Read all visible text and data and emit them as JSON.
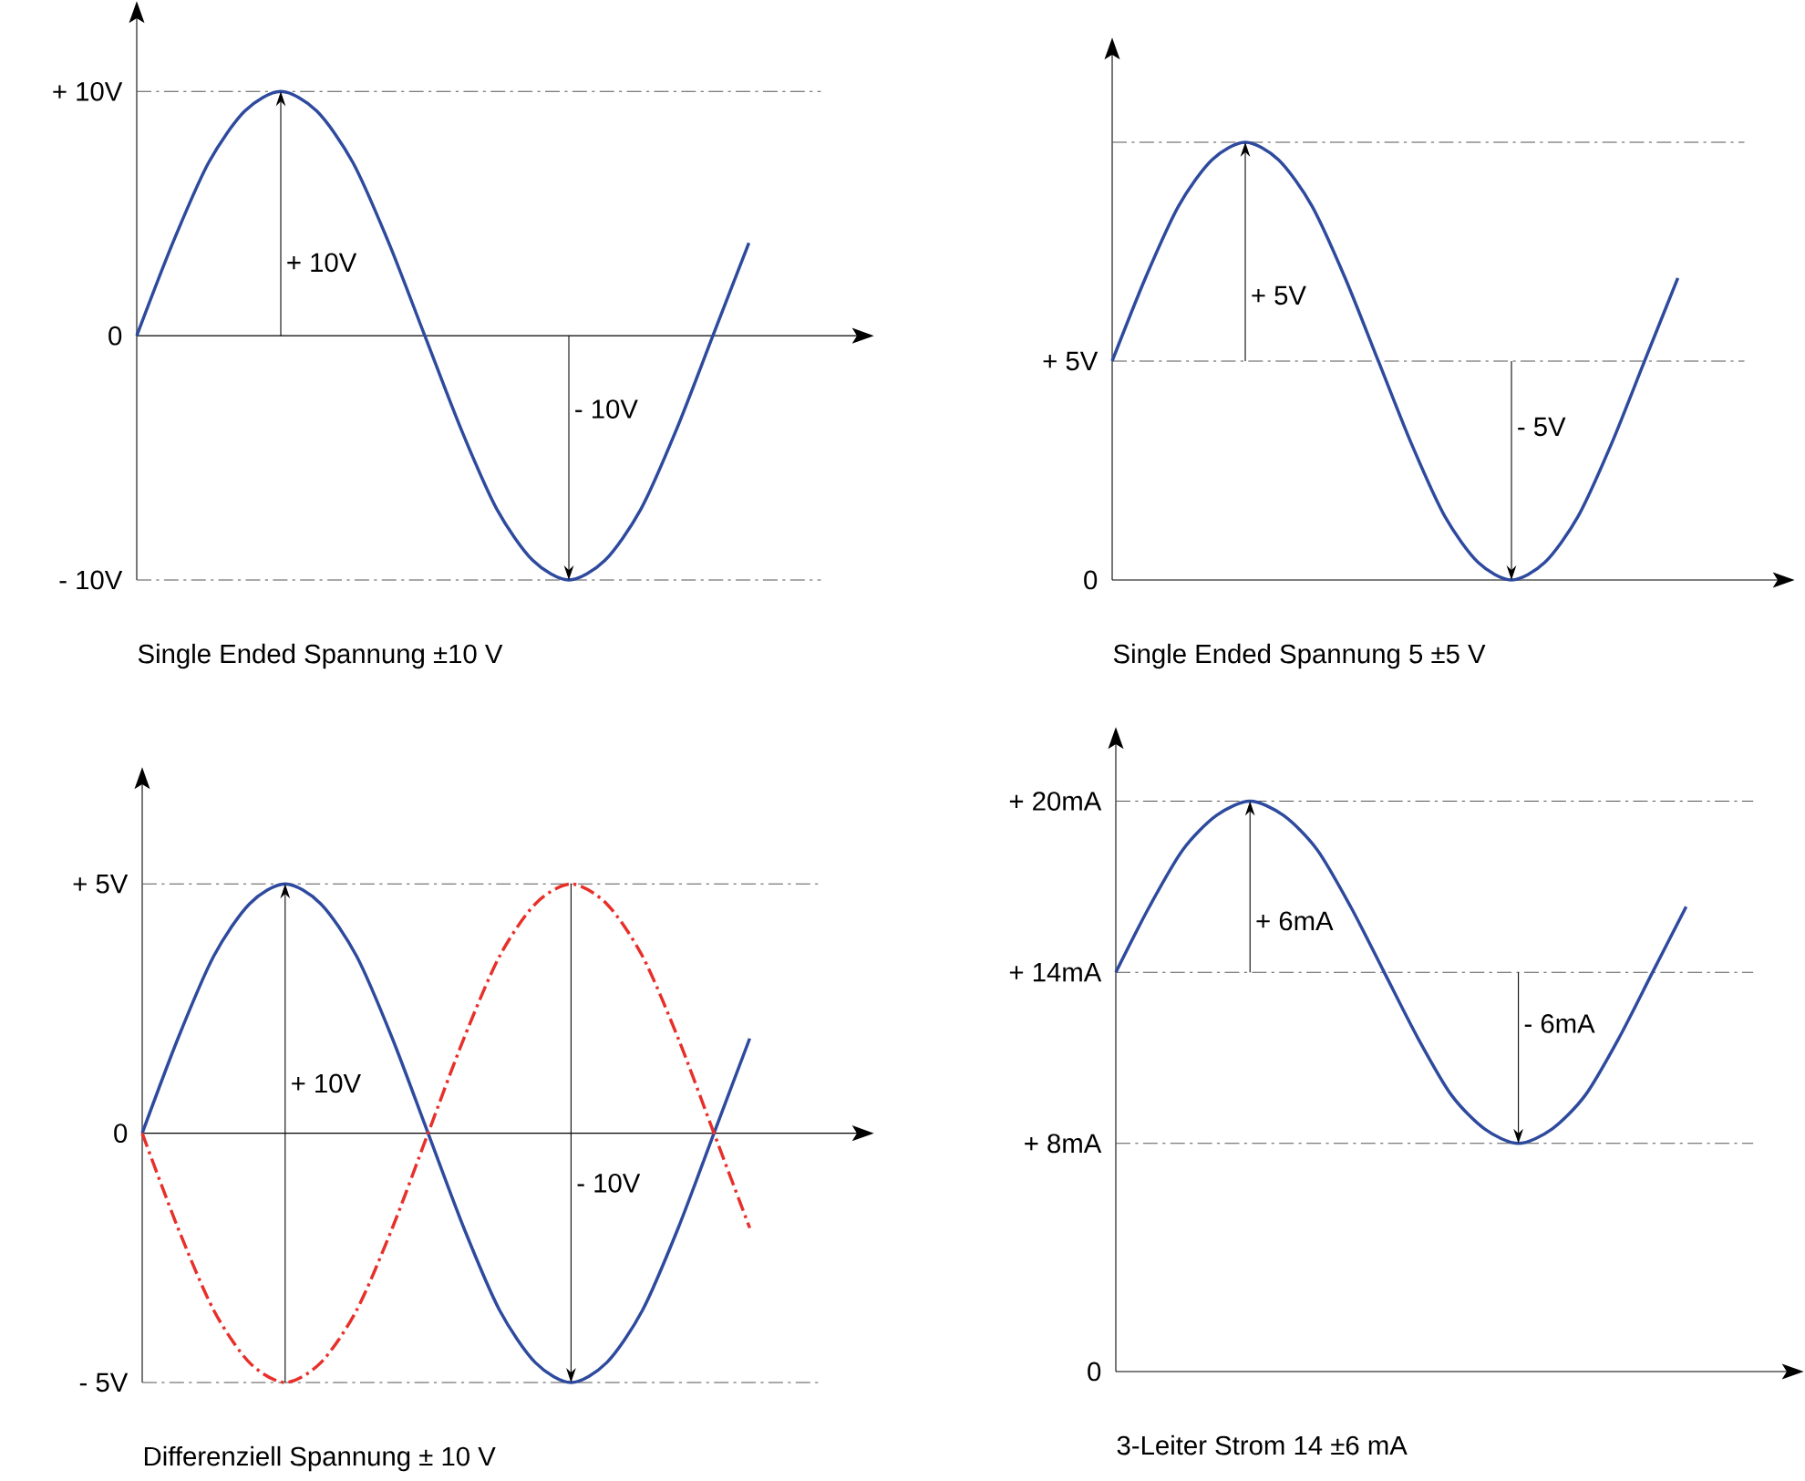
{
  "chart_data": [
    {
      "type": "line",
      "title": "Single Ended Spannung ±10 V",
      "categories": [
        null,
        null,
        null,
        null,
        null,
        null,
        null,
        null,
        null,
        null,
        null,
        null,
        null,
        null,
        null,
        null,
        null,
        null
      ],
      "series": [
        {
          "color": "#2e4a9e",
          "values": [
            0,
            3.8,
            7.1,
            9.2,
            10,
            9.2,
            7.1,
            3.8,
            0,
            -3.8,
            -7.1,
            -9.2,
            -10,
            -9.2,
            -7.1,
            -3.8,
            0,
            3.8
          ]
        }
      ],
      "ylim": [
        -10,
        13
      ],
      "yticks": [
        {
          "value": -10,
          "label": "- 10V"
        },
        0,
        {
          "value": 10,
          "label": "+ 10V"
        }
      ],
      "tick_labels": "y",
      "ref_lines": [
        {
          "axis": "y",
          "value": 10,
          "color": "#555555"
        },
        {
          "axis": "y",
          "value": -10,
          "color": "#555555"
        }
      ],
      "annotations": [
        "+ 10V",
        "- 10V"
      ]
    },
    {
      "type": "line",
      "title": "Single Ended Spannung 5 ±5 V",
      "categories": [
        null,
        null,
        null,
        null,
        null,
        null,
        null,
        null,
        null,
        null,
        null,
        null,
        null,
        null,
        null,
        null,
        null,
        null
      ],
      "series": [
        {
          "color": "#2e4a9e",
          "values": [
            5,
            6.9,
            8.55,
            9.6,
            10,
            9.6,
            8.55,
            6.9,
            5,
            3.1,
            1.45,
            0.4,
            0,
            0.4,
            1.45,
            3.1,
            5,
            6.9
          ]
        }
      ],
      "ylim": [
        0,
        12
      ],
      "yticks": [
        0,
        {
          "value": 5,
          "label": "+ 5V"
        }
      ],
      "tick_labels": "y",
      "ref_lines": [
        {
          "axis": "y",
          "value": 10,
          "color": "#555555"
        },
        {
          "axis": "y",
          "value": 5,
          "color": "#555555"
        }
      ],
      "annotations": [
        "+ 5V",
        "- 5V"
      ]
    },
    {
      "type": "line",
      "title": "Differenziell Spannung ± 10 V",
      "categories": [
        null,
        null,
        null,
        null,
        null,
        null,
        null,
        null,
        null,
        null,
        null,
        null,
        null,
        null,
        null,
        null,
        null,
        null
      ],
      "series": [
        {
          "color": "#2e4a9e",
          "values": [
            0,
            1.9,
            3.55,
            4.6,
            5,
            4.6,
            3.55,
            1.9,
            0,
            -1.9,
            -3.55,
            -4.6,
            -5,
            -4.6,
            -3.55,
            -1.9,
            0,
            1.9
          ]
        },
        {
          "color": "#e8302a",
          "line_style": "dashed",
          "values": [
            0,
            -1.9,
            -3.55,
            -4.6,
            -5,
            -4.6,
            -3.55,
            -1.9,
            0,
            1.9,
            3.55,
            4.6,
            5,
            4.6,
            3.55,
            1.9,
            0,
            -1.9
          ]
        }
      ],
      "ylim": [
        -5,
        7
      ],
      "yticks": [
        {
          "value": -5,
          "label": "- 5V"
        },
        0,
        {
          "value": 5,
          "label": "+ 5V"
        }
      ],
      "tick_labels": "y",
      "ref_lines": [
        {
          "axis": "y",
          "value": 5,
          "color": "#555555"
        },
        {
          "axis": "y",
          "value": -5,
          "color": "#555555"
        }
      ],
      "annotations": [
        "+ 10V",
        "- 10V"
      ]
    },
    {
      "type": "line",
      "title": "3-Leiter Strom 14 ±6 mA",
      "categories": [
        null,
        null,
        null,
        null,
        null,
        null,
        null,
        null,
        null,
        null,
        null,
        null,
        null,
        null,
        null,
        null,
        null,
        null
      ],
      "series": [
        {
          "color": "#2e4a9e",
          "values": [
            14,
            16.3,
            18.3,
            19.5,
            20,
            19.5,
            18.3,
            16.3,
            14,
            11.7,
            9.7,
            8.5,
            8,
            8.5,
            9.7,
            11.7,
            14,
            16.3
          ]
        }
      ],
      "ylim": [
        0,
        22
      ],
      "yticks": [
        0,
        {
          "value": 8,
          "label": "+ 8mA"
        },
        {
          "value": 14,
          "label": "+ 14mA"
        },
        {
          "value": 20,
          "label": "+ 20mA"
        }
      ],
      "tick_labels": "y",
      "ref_lines": [
        {
          "axis": "y",
          "value": 20,
          "color": "#555555"
        },
        {
          "axis": "y",
          "value": 14,
          "color": "#555555"
        },
        {
          "axis": "y",
          "value": 8,
          "color": "#555555"
        }
      ],
      "annotations": [
        "+ 6mA",
        "- 6mA"
      ]
    }
  ]
}
